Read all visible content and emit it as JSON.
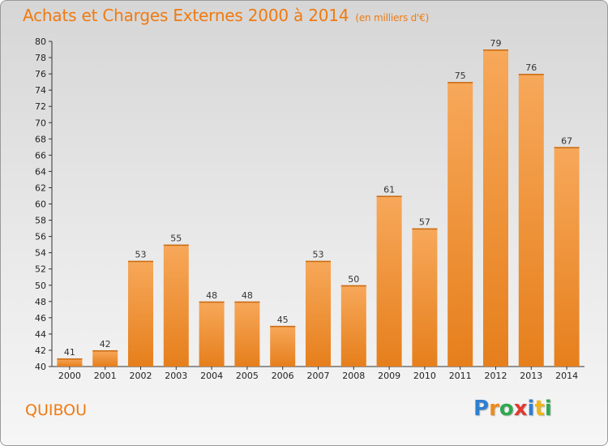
{
  "header": {
    "title": "Achats et Charges Externes 2000 à 2014",
    "subtitle": "(en milliers d'€)"
  },
  "footer": {
    "town": "QUIBOU",
    "logo": {
      "text": "Proxiti",
      "letters": [
        "P",
        "r",
        "o",
        "x",
        "i",
        "t",
        "i"
      ],
      "colors": [
        "#2f7fd0",
        "#f08a18",
        "#2fa84f",
        "#e03a2f",
        "#2f7fd0",
        "#f0b418",
        "#2fa84f"
      ]
    }
  },
  "chart_data": {
    "type": "bar",
    "title": "Achats et Charges Externes 2000 à 2014",
    "subtitle": "(en milliers d'€)",
    "categories": [
      "2000",
      "2001",
      "2002",
      "2003",
      "2004",
      "2005",
      "2006",
      "2007",
      "2008",
      "2009",
      "2010",
      "2011",
      "2012",
      "2013",
      "2014"
    ],
    "values": [
      41,
      42,
      53,
      55,
      48,
      48,
      45,
      53,
      50,
      61,
      57,
      75,
      79,
      76,
      67
    ],
    "ylim": [
      40,
      80
    ],
    "ytick_step": 2,
    "grid": false,
    "bar_color_top": "#f7a85a",
    "bar_color_bottom": "#e67f1c"
  }
}
